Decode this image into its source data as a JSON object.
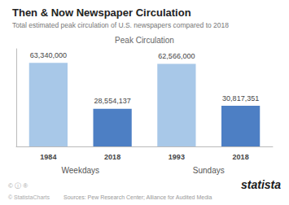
{
  "chart_data": {
    "type": "bar",
    "title": "Then & Now Newspaper Circulation",
    "subtitle": "Total estimated peak circulation of U.S. newspapers compared to 2018",
    "annotations": [
      "Peak Circulation"
    ],
    "categories": [
      "1984",
      "2018",
      "1993",
      "2018"
    ],
    "category_groups": [
      "Weekdays",
      "Sundays"
    ],
    "values": [
      63340000,
      28554137,
      62566000,
      30817351
    ],
    "value_labels": [
      "63,340,000",
      "28,554,137",
      "62,566,000",
      "30,817,351"
    ],
    "colors": [
      "#a8c8e8",
      "#4d7fc4",
      "#a8c8e8",
      "#4d7fc4"
    ],
    "data_labels": true,
    "ylim": [
      0,
      74000000
    ],
    "grid": false,
    "tick_labels": "x",
    "footer": [
      "© ⓘ ®",
      "© StatistaCharts",
      "Sources: Pew Research Center; Alliance for Audited Media",
      "statista"
    ]
  }
}
